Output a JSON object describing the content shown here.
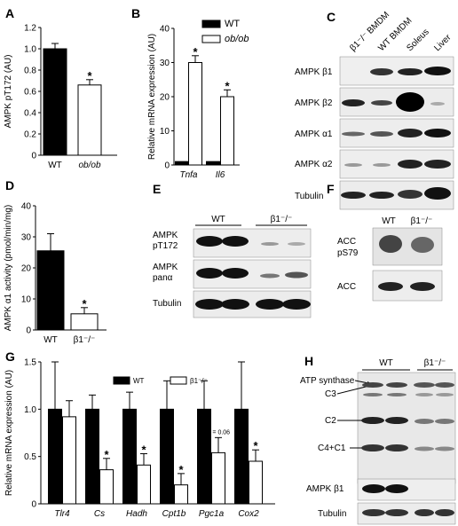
{
  "panels": {
    "A": {
      "label": "A"
    },
    "B": {
      "label": "B"
    },
    "C": {
      "label": "C"
    },
    "D": {
      "label": "D"
    },
    "E": {
      "label": "E"
    },
    "F": {
      "label": "F"
    },
    "G": {
      "label": "G"
    },
    "H": {
      "label": "H"
    }
  },
  "blots": {
    "C": {
      "columns": [
        "β1⁻/⁻ BMDM",
        "WT BMDM",
        "Soleus",
        "Liver"
      ],
      "rows": [
        "AMPK β1",
        "AMPK β2",
        "AMPK α1",
        "AMPK α2",
        "Tubulin"
      ]
    },
    "E": {
      "groups": [
        "WT",
        "β1⁻/⁻"
      ],
      "rows": [
        "AMPK pT172",
        "AMPK panα",
        "Tubulin"
      ],
      "row_lines": [
        [
          "AMPK",
          "pT172"
        ],
        [
          "AMPK",
          "panα"
        ],
        [
          "Tubulin"
        ]
      ]
    },
    "F": {
      "groups": [
        "WT",
        "β1⁻/⁻"
      ],
      "rows": [
        [
          "ACC",
          "pS79"
        ],
        [
          "ACC"
        ]
      ]
    },
    "H": {
      "groups": [
        "WT",
        "β1⁻/⁻"
      ],
      "bands": [
        "ATP synthase",
        "C3",
        "C2",
        "C4+C1"
      ],
      "rows": [
        "AMPK β1",
        "Tubulin"
      ]
    }
  },
  "chart_data": [
    {
      "panel": "A",
      "type": "bar",
      "categories": [
        "WT",
        "ob/ob"
      ],
      "values": [
        1.0,
        0.66
      ],
      "errors": [
        0.05,
        0.05
      ],
      "colors": [
        "#000000",
        "#ffffff"
      ],
      "ylabel": "AMPK pT172 (AU)",
      "ylim": [
        0,
        1.2
      ],
      "yticks": [
        "0",
        "0.2",
        "0.4",
        "0.6",
        "0.8",
        "1.0",
        "1.2"
      ],
      "significance": [
        "",
        "*"
      ]
    },
    {
      "panel": "B",
      "type": "bar",
      "categories": [
        "Tnfa",
        "Il6"
      ],
      "series": [
        {
          "name": "WT",
          "color": "#000000",
          "values": [
            1,
            1
          ],
          "errors": [
            0,
            0
          ]
        },
        {
          "name": "ob/ob",
          "color": "#ffffff",
          "values": [
            30,
            20
          ],
          "errors": [
            2,
            2
          ]
        }
      ],
      "ylabel": "Relative mRNA expression (AU)",
      "ylim": [
        0,
        40
      ],
      "yticks": [
        "0",
        "10",
        "20",
        "30",
        "40"
      ],
      "significance": [
        "*",
        "*"
      ]
    },
    {
      "panel": "D",
      "type": "bar",
      "categories": [
        "WT",
        "β1⁻/⁻"
      ],
      "values": [
        25.5,
        5.2
      ],
      "errors": [
        5.5,
        2.0
      ],
      "colors": [
        "#000000",
        "#ffffff"
      ],
      "ylabel": "AMPK α1 activity (pmol/min/mg)",
      "ylim": [
        0,
        40
      ],
      "yticks": [
        "0",
        "10",
        "20",
        "30",
        "40"
      ],
      "significance": [
        "",
        "*"
      ]
    },
    {
      "panel": "G",
      "type": "bar",
      "categories": [
        "Tlr4",
        "Cs",
        "Hadh",
        "Cpt1b",
        "Pgc1a",
        "Cox2"
      ],
      "series": [
        {
          "name": "WT",
          "color": "#000000",
          "values": [
            1,
            1,
            1,
            1,
            1,
            1
          ],
          "errors": [
            0.5,
            0.15,
            0.18,
            0.3,
            0.3,
            0.5
          ]
        },
        {
          "name": "β1⁻/⁻",
          "color": "#ffffff",
          "values": [
            0.92,
            0.36,
            0.41,
            0.2,
            0.54,
            0.45
          ],
          "errors": [
            0.17,
            0.12,
            0.12,
            0.12,
            0.16,
            0.12
          ]
        }
      ],
      "ylabel": "Relative mRNA expression (AU)",
      "ylim": [
        0,
        1.5
      ],
      "yticks": [
        "0",
        "0.5",
        "1.0",
        "1.5"
      ],
      "significance": [
        "",
        "*",
        "*",
        "*",
        "P = 0.06",
        "*"
      ]
    }
  ]
}
